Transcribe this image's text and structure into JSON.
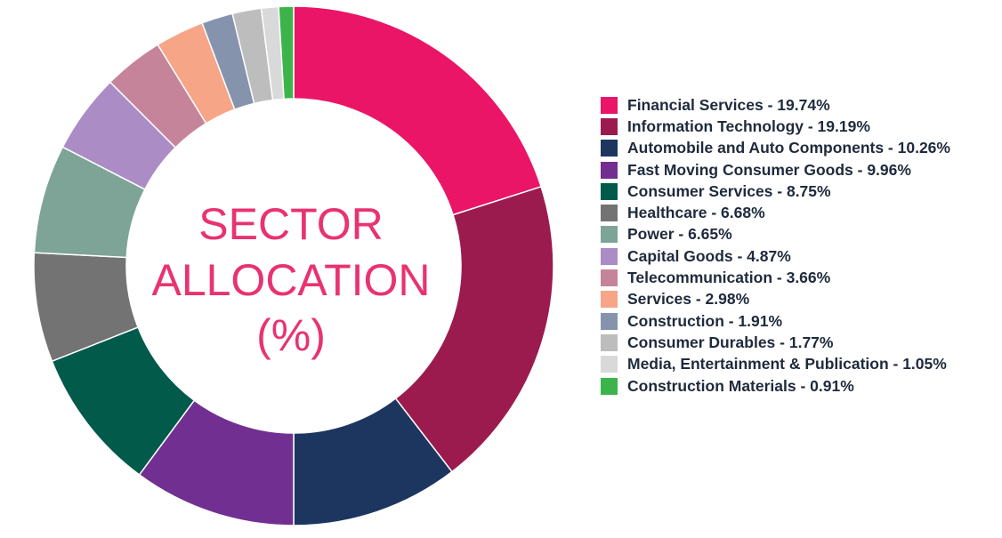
{
  "chart_data": {
    "type": "pie",
    "title": "SECTOR ALLOCATION (%)",
    "title_lines": [
      "SECTOR",
      "ALLOCATION",
      "(%)"
    ],
    "legend_position": "right",
    "slices": [
      {
        "label": "Financial Services",
        "value": 19.74,
        "legend_text": "Financial Services - 19.74%",
        "color": "#ea1567"
      },
      {
        "label": "Information Technology",
        "value": 19.19,
        "legend_text": "Information Technology - 19.19%",
        "color": "#9b1b4e"
      },
      {
        "label": "Automobile and Auto Components",
        "value": 10.26,
        "legend_text": "Automobile and Auto Components - 10.26%",
        "color": "#1c365f"
      },
      {
        "label": "Fast Moving Consumer Goods",
        "value": 9.96,
        "legend_text": "Fast Moving Consumer Goods - 9.96%",
        "color": "#722f92"
      },
      {
        "label": "Consumer Services",
        "value": 8.75,
        "legend_text": "Consumer Services - 8.75%",
        "color": "#015a4a"
      },
      {
        "label": "Healthcare",
        "value": 6.68,
        "legend_text": "Healthcare - 6.68%",
        "color": "#737373"
      },
      {
        "label": "Power",
        "value": 6.65,
        "legend_text": "Power - 6.65%",
        "color": "#7ea498"
      },
      {
        "label": "Capital Goods",
        "value": 4.87,
        "legend_text": "Capital Goods - 4.87%",
        "color": "#ab8cc4"
      },
      {
        "label": "Telecommunication",
        "value": 3.66,
        "legend_text": "Telecommunication - 3.66%",
        "color": "#c6849a"
      },
      {
        "label": "Services",
        "value": 2.98,
        "legend_text": "Services - 2.98%",
        "color": "#f7a587"
      },
      {
        "label": "Construction",
        "value": 1.91,
        "legend_text": "Construction - 1.91%",
        "color": "#8593ad"
      },
      {
        "label": "Consumer Durables",
        "value": 1.77,
        "legend_text": "Consumer Durables - 1.77%",
        "color": "#bdbdbd"
      },
      {
        "label": "Media, Entertainment & Publication",
        "value": 1.05,
        "legend_text": "Media, Entertainment & Publication - 1.05%",
        "color": "#d9d9d9"
      },
      {
        "label": "Construction Materials",
        "value": 0.91,
        "legend_text": "Construction Materials - 0.91%",
        "color": "#3cb44b"
      }
    ]
  }
}
